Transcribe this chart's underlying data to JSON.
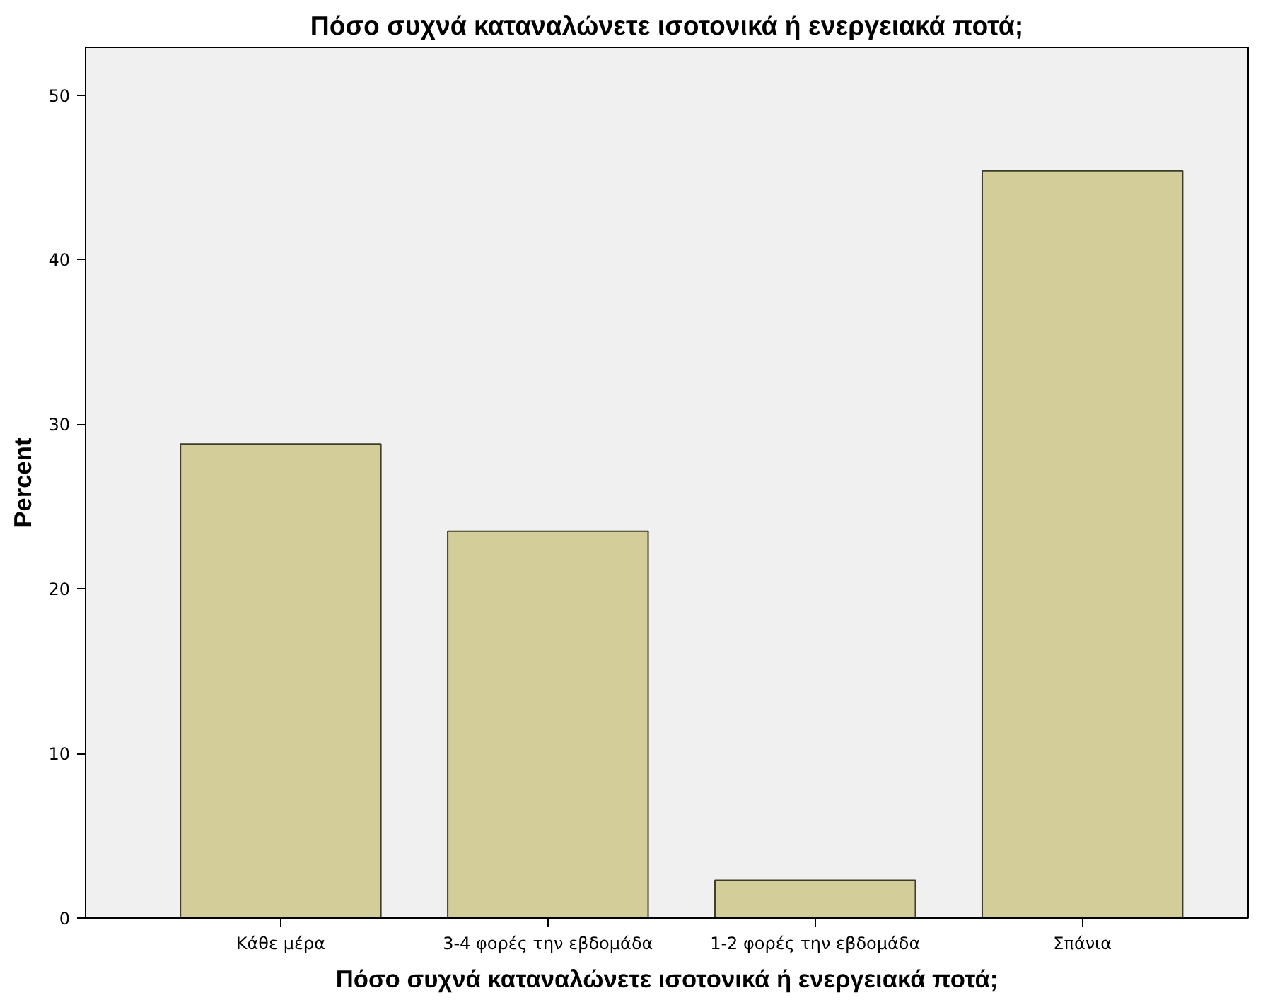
{
  "chart_data": {
    "type": "bar",
    "title": "Πόσο συχνά καταναλώνετε ισοτονικά ή ενεργειακά ποτά;",
    "xlabel": "Πόσο συχνά καταναλώνετε ισοτονικά ή ενεργειακά ποτά;",
    "ylabel": "Percent",
    "categories": [
      "Κάθε μέρα",
      "3-4 φορές την εβδομάδα",
      "1-2 φορές την εβδομάδα",
      "Σπάνια"
    ],
    "values": [
      28.8,
      23.5,
      2.3,
      45.4
    ],
    "color": "#d3ce99",
    "ylim": [
      0,
      52.9
    ],
    "yticks": [
      0,
      10,
      20,
      30,
      40,
      50
    ],
    "grid": false
  }
}
